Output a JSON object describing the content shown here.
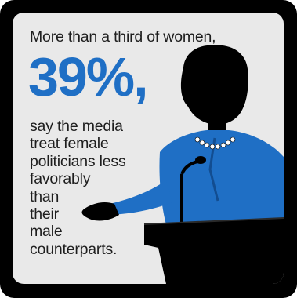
{
  "infographic": {
    "headline": "More than a third of women,",
    "stat": "39%,",
    "body_lines": [
      "say the media",
      "treat female",
      "politicians less",
      "favorably",
      "than",
      "their",
      "male",
      "counterparts."
    ],
    "colors": {
      "accent": "#1f6fc5",
      "background": "#e9e9e9",
      "frame": "#000000",
      "text": "#1e1e1e"
    },
    "illustration": "woman-speaking-at-podium"
  }
}
